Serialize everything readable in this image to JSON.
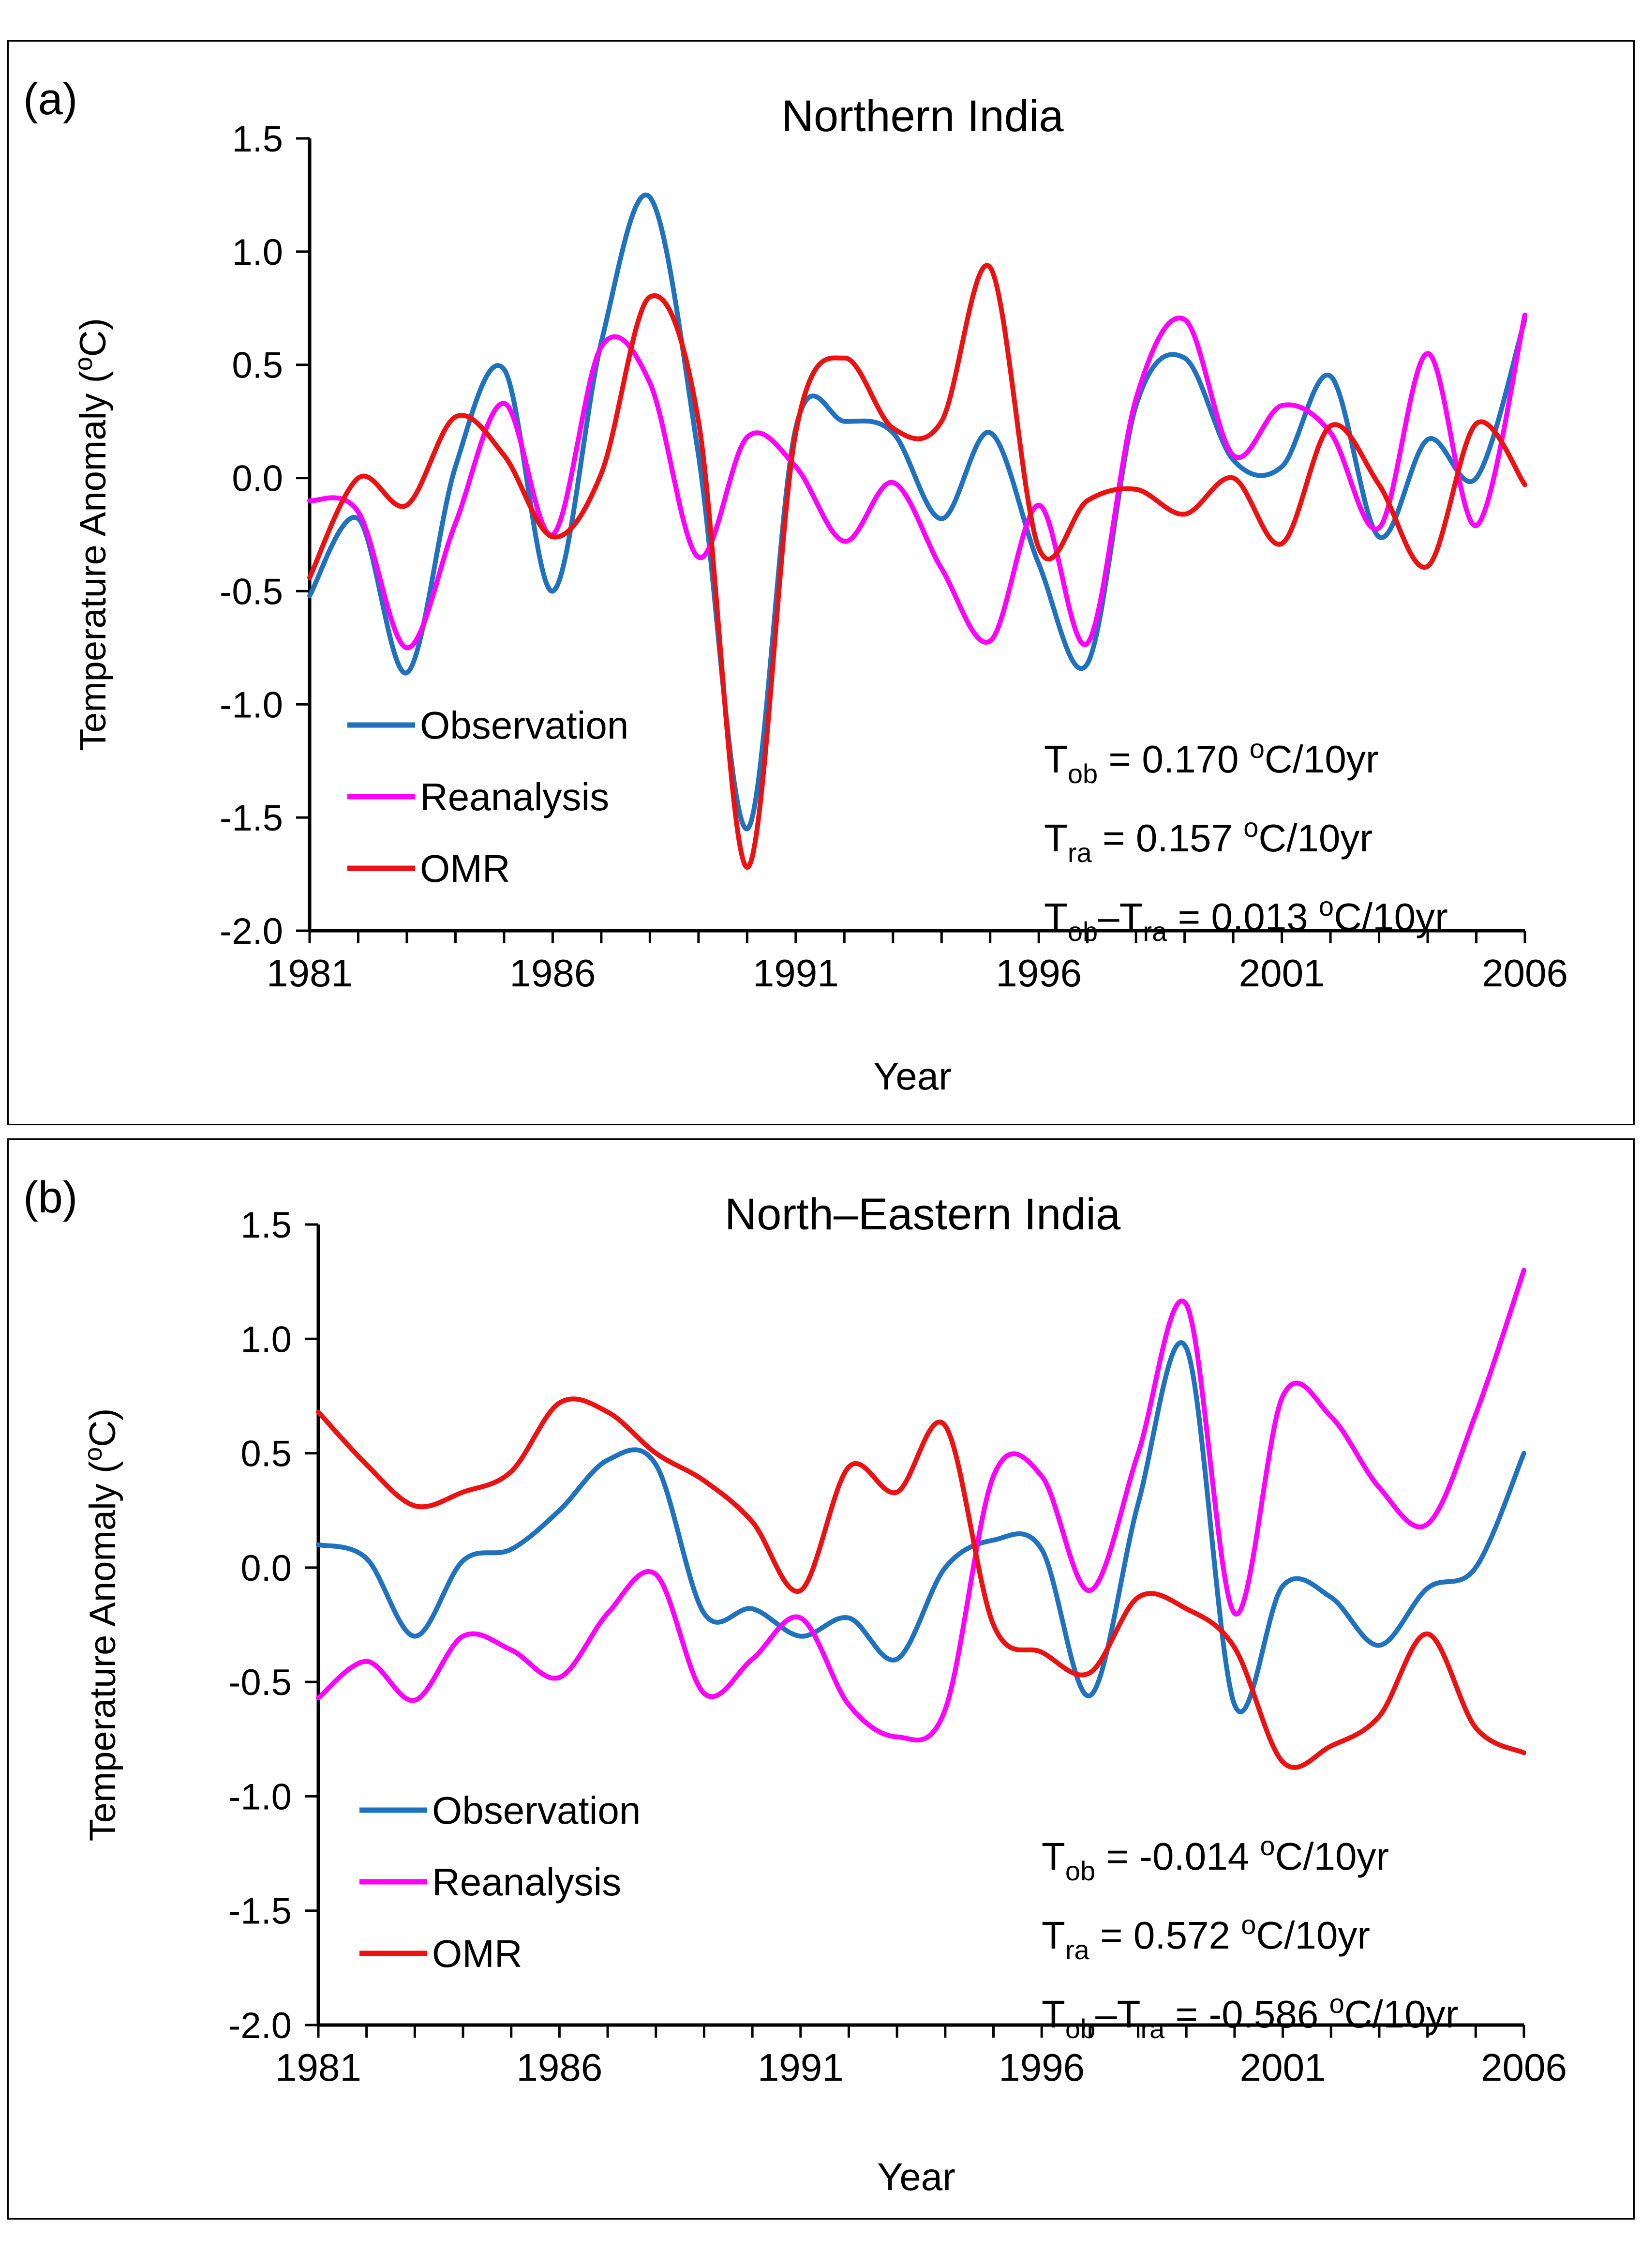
{
  "colors": {
    "observation": "#1f72bf",
    "reanalysis": "#ff00ff",
    "omr": "#ee1111"
  },
  "chart_data": [
    {
      "type": "line",
      "panel_label": "(a)",
      "title": "Northern India",
      "xlabel": "Year",
      "ylabel": "Temperature Anomaly (oC)",
      "xlim": [
        1981,
        2006
      ],
      "ylim": [
        -2.0,
        1.5
      ],
      "x_ticks": [
        "1981",
        "1986",
        "1991",
        "1996",
        "2001",
        "2006"
      ],
      "y_ticks": [
        "1.5",
        "1.0",
        "0.5",
        "0.0",
        "-0.5",
        "-1.0",
        "-1.5",
        "-2.0"
      ],
      "legend_position": "bottom-left",
      "x": [
        1981,
        1982,
        1983,
        1984,
        1985,
        1986,
        1987,
        1988,
        1989,
        1990,
        1991,
        1992,
        1993,
        1994,
        1995,
        1996,
        1997,
        1998,
        1999,
        2000,
        2001,
        2002,
        2003,
        2004,
        2005,
        2006
      ],
      "series": [
        {
          "name": "Observation",
          "color_key": "observation",
          "values": [
            -0.52,
            -0.18,
            -0.86,
            0.05,
            0.48,
            -0.5,
            0.6,
            1.24,
            0.1,
            -1.55,
            0.22,
            0.25,
            0.2,
            -0.18,
            0.2,
            -0.38,
            -0.82,
            0.32,
            0.53,
            0.08,
            0.05,
            0.45,
            -0.26,
            0.17,
            0.0,
            0.7
          ]
        },
        {
          "name": "Reanalysis",
          "color_key": "reanalysis",
          "values": [
            -0.1,
            -0.15,
            -0.75,
            -0.2,
            0.33,
            -0.25,
            0.58,
            0.42,
            -0.35,
            0.18,
            0.05,
            -0.28,
            -0.02,
            -0.4,
            -0.72,
            -0.12,
            -0.73,
            0.35,
            0.7,
            0.1,
            0.32,
            0.2,
            -0.22,
            0.55,
            -0.21,
            0.72
          ]
        },
        {
          "name": "OMR",
          "color_key": "omr",
          "values": [
            -0.44,
            0.0,
            -0.12,
            0.27,
            0.1,
            -0.26,
            0.02,
            0.8,
            0.25,
            -1.72,
            0.2,
            0.53,
            0.22,
            0.25,
            0.93,
            -0.31,
            -0.1,
            -0.05,
            -0.16,
            0.0,
            -0.29,
            0.23,
            -0.03,
            -0.39,
            0.24,
            -0.03
          ]
        }
      ],
      "trend_lines": [
        {
          "prefix": "T",
          "sub1": "ob",
          "mid": "",
          "sub2": "",
          "value": " = 0.170 ",
          "unit_sup": "o",
          "unit": "C/10yr"
        },
        {
          "prefix": "T",
          "sub1": "ra",
          "mid": "",
          "sub2": "",
          "value": " = 0.157 ",
          "unit_sup": "o",
          "unit": "C/10yr"
        },
        {
          "prefix": "T",
          "sub1": "ob",
          "mid": "–T",
          "sub2": "ra",
          "value": " = 0.013 ",
          "unit_sup": "o",
          "unit": "C/10yr"
        }
      ]
    },
    {
      "type": "line",
      "panel_label": "(b)",
      "title": "North–Eastern India",
      "xlabel": "Year",
      "ylabel": "Temperature Anomaly (oC)",
      "xlim": [
        1981,
        2006
      ],
      "ylim": [
        -2.0,
        1.5
      ],
      "x_ticks": [
        "1981",
        "1986",
        "1991",
        "1996",
        "2001",
        "2006"
      ],
      "y_ticks": [
        "1.5",
        "1.0",
        "0.5",
        "0.0",
        "-0.5",
        "-1.0",
        "-1.5",
        "-2.0"
      ],
      "legend_position": "bottom-left",
      "x": [
        1981,
        1982,
        1983,
        1984,
        1985,
        1986,
        1987,
        1988,
        1989,
        1990,
        1991,
        1992,
        1993,
        1994,
        1995,
        1996,
        1997,
        1998,
        1999,
        2000,
        2001,
        2002,
        2003,
        2004,
        2005,
        2006
      ],
      "series": [
        {
          "name": "Observation",
          "color_key": "observation",
          "values": [
            0.1,
            0.04,
            -0.3,
            0.03,
            0.08,
            0.25,
            0.47,
            0.45,
            -0.2,
            -0.18,
            -0.3,
            -0.22,
            -0.4,
            0.0,
            0.12,
            0.08,
            -0.56,
            0.28,
            0.96,
            -0.6,
            -0.08,
            -0.13,
            -0.34,
            -0.09,
            0.0,
            0.5
          ]
        },
        {
          "name": "Reanalysis",
          "color_key": "reanalysis",
          "values": [
            -0.57,
            -0.41,
            -0.58,
            -0.3,
            -0.36,
            -0.48,
            -0.2,
            -0.03,
            -0.55,
            -0.4,
            -0.22,
            -0.6,
            -0.74,
            -0.62,
            0.4,
            0.4,
            -0.1,
            0.5,
            1.15,
            -0.2,
            0.75,
            0.66,
            0.35,
            0.19,
            0.67,
            1.3
          ]
        },
        {
          "name": "OMR",
          "color_key": "omr",
          "values": [
            0.68,
            0.45,
            0.27,
            0.33,
            0.42,
            0.72,
            0.68,
            0.5,
            0.38,
            0.2,
            -0.1,
            0.44,
            0.33,
            0.62,
            -0.25,
            -0.37,
            -0.46,
            -0.13,
            -0.18,
            -0.35,
            -0.85,
            -0.78,
            -0.65,
            -0.29,
            -0.7,
            -0.81
          ]
        }
      ],
      "trend_lines": [
        {
          "prefix": "T",
          "sub1": "ob",
          "mid": "",
          "sub2": "",
          "value": " = -0.014 ",
          "unit_sup": "o",
          "unit": "C/10yr"
        },
        {
          "prefix": "T",
          "sub1": "ra",
          "mid": "",
          "sub2": "",
          "value": " = 0.572 ",
          "unit_sup": "o",
          "unit": "C/10yr"
        },
        {
          "prefix": "T",
          "sub1": "ob",
          "mid": "–T",
          "sub2": "ra",
          "value": " = -0.586 ",
          "unit_sup": "o",
          "unit": "C/10yr"
        }
      ]
    }
  ]
}
